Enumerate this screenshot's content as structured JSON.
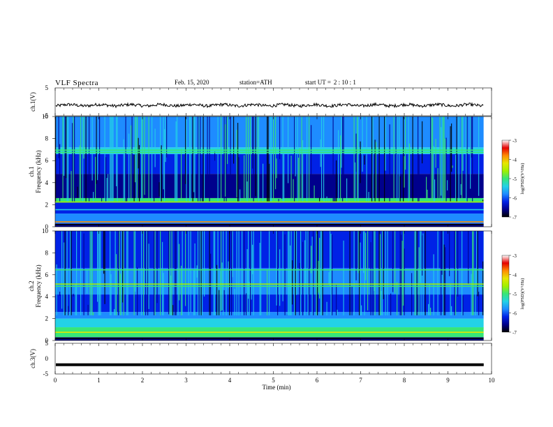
{
  "header": {
    "title": "VLF  Spectra",
    "date": "Feb. 15, 2020",
    "station": "station=ATH",
    "start_prefix": "start  UT  =",
    "start_time": "2  : 10 : 1"
  },
  "colors": {
    "spectrogram_scale": [
      "#000000",
      "#00008c",
      "#0022e6",
      "#1e8cff",
      "#23d2e6",
      "#37e678",
      "#a0f000",
      "#e6e600",
      "#ff8c00",
      "#e60000",
      "#ffffff"
    ],
    "trace": "#000000"
  },
  "chart_data": [
    {
      "type": "line",
      "ylabel": "ch.1(V)",
      "ylim": [
        -5,
        5
      ],
      "yticks": [
        "5",
        "-5"
      ],
      "series": [
        {
          "description_values": "noisy waveform near -1 V",
          "mean": -1.2,
          "amplitude": 0.9
        }
      ]
    },
    {
      "type": "heatmap",
      "ylabel": [
        "ch.1",
        "Frequency  (kHz)"
      ],
      "ylim": [
        0,
        10
      ],
      "yticks": [
        "0",
        "2",
        "4",
        "6",
        "8",
        "10"
      ],
      "colorbar": {
        "label": "log(PSD)(V²/Hz)",
        "ticks": [
          "-3",
          "-4",
          "-5",
          "-6",
          "-7"
        ]
      }
    },
    {
      "type": "heatmap",
      "ylabel": [
        "ch.2",
        "Frequency  (kHz)"
      ],
      "ylim": [
        0,
        10
      ],
      "yticks": [
        "0",
        "2",
        "4",
        "6",
        "8",
        "10"
      ],
      "colorbar": {
        "label": "log(PSD)(V²/Hz)",
        "ticks": [
          "-3",
          "-4",
          "-5",
          "-6",
          "-7"
        ]
      }
    },
    {
      "type": "line",
      "ylabel": "ch.3(V)",
      "ylim": [
        -5,
        5
      ],
      "yticks": [
        "5",
        "0",
        "-5"
      ],
      "series": [
        {
          "constant_value": -2.0
        }
      ]
    }
  ],
  "xaxis": {
    "label": "Time  (min)",
    "range": [
      0,
      10
    ],
    "data_end": 9.82,
    "ticks": [
      "0",
      "1",
      "2",
      "3",
      "4",
      "5",
      "6",
      "7",
      "8",
      "9",
      "10"
    ]
  }
}
